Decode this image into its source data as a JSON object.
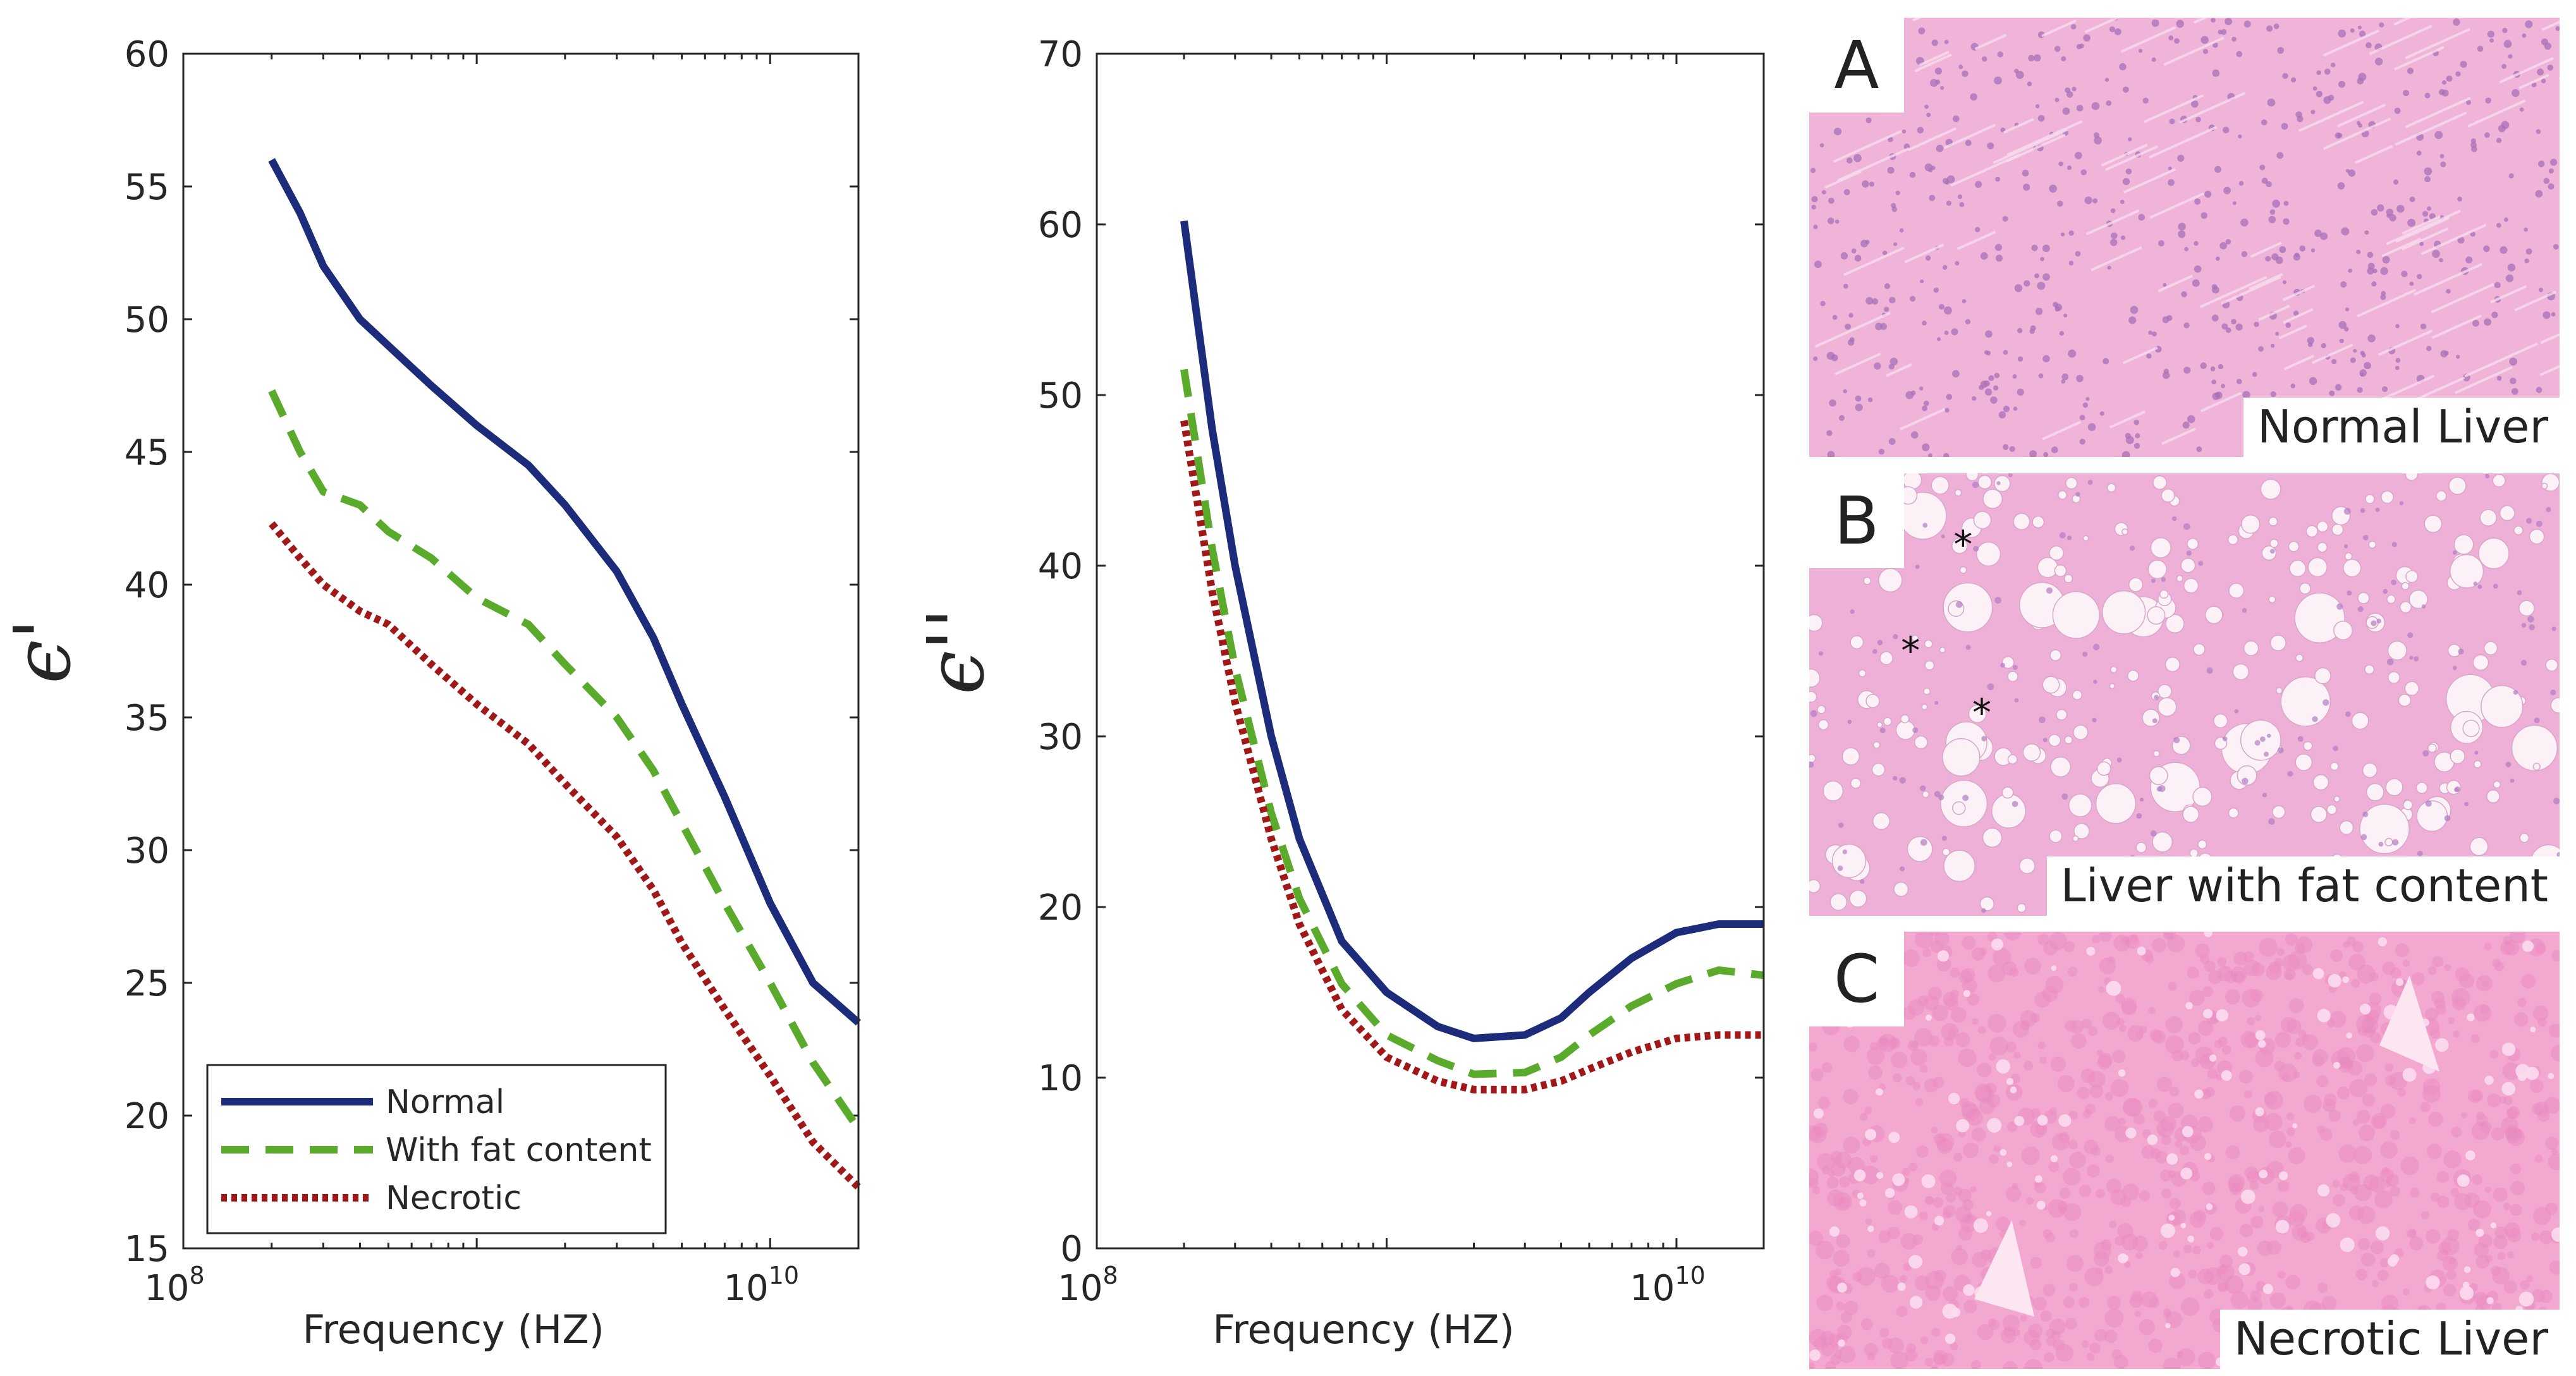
{
  "chart_data": [
    {
      "type": "line",
      "xscale": "log",
      "xlim": [
        100000000,
        20000000000
      ],
      "ylim": [
        15,
        60
      ],
      "xlabel": "Frequency (HZ)",
      "ylabel": "ϵ'",
      "x_tick_labels": [
        {
          "base": "10",
          "exp": "8"
        },
        {
          "base": "10",
          "exp": "10"
        }
      ],
      "y_ticks": [
        15,
        20,
        25,
        30,
        35,
        40,
        45,
        50,
        55,
        60
      ],
      "legend_position": "bottom-left",
      "x": [
        200000000,
        250000000,
        300000000,
        400000000,
        500000000,
        700000000,
        1000000000,
        1500000000,
        2000000000,
        3000000000,
        4000000000,
        5000000000,
        7000000000,
        10000000000,
        14000000000,
        20000000000
      ],
      "series": [
        {
          "name": "Normal",
          "color": "#1c2b7a",
          "style": "solid",
          "values": [
            56,
            54,
            52,
            50,
            49,
            47.5,
            46,
            44.5,
            43,
            40.5,
            38,
            35.5,
            32,
            28,
            25,
            23.5
          ]
        },
        {
          "name": "With fat content",
          "color": "#5aab2c",
          "style": "dashed",
          "values": [
            47.3,
            45,
            43.5,
            43,
            42,
            41,
            39.5,
            38.5,
            37,
            35,
            33,
            31,
            28,
            25,
            22,
            19.5
          ]
        },
        {
          "name": "Necrotic",
          "color": "#a01818",
          "style": "dotted",
          "values": [
            42.3,
            41,
            40,
            39,
            38.5,
            37,
            35.5,
            34,
            32.5,
            30.5,
            28.5,
            26.5,
            24,
            21.5,
            19,
            17.3
          ]
        }
      ]
    },
    {
      "type": "line",
      "xscale": "log",
      "xlim": [
        100000000,
        20000000000
      ],
      "ylim": [
        0,
        70
      ],
      "xlabel": "Frequency (HZ)",
      "ylabel": "ϵ''",
      "x_tick_labels": [
        {
          "base": "10",
          "exp": "8"
        },
        {
          "base": "10",
          "exp": "10"
        }
      ],
      "y_ticks": [
        0,
        10,
        20,
        30,
        40,
        50,
        60,
        70
      ],
      "x": [
        200000000,
        250000000,
        300000000,
        400000000,
        500000000,
        700000000,
        1000000000,
        1500000000,
        2000000000,
        3000000000,
        4000000000,
        5000000000,
        7000000000,
        10000000000,
        14000000000,
        20000000000
      ],
      "series": [
        {
          "name": "Normal",
          "color": "#1c2b7a",
          "style": "solid",
          "values": [
            60.2,
            48,
            40,
            30,
            24,
            18,
            15,
            13,
            12.3,
            12.5,
            13.5,
            15,
            17,
            18.5,
            19,
            19
          ]
        },
        {
          "name": "With fat content",
          "color": "#5aab2c",
          "style": "dashed",
          "values": [
            51.5,
            41,
            34,
            25.5,
            20.5,
            15.5,
            12.5,
            11,
            10.2,
            10.3,
            11.2,
            12.5,
            14.2,
            15.5,
            16.3,
            16
          ]
        },
        {
          "name": "Necrotic",
          "color": "#a01818",
          "style": "dotted",
          "values": [
            48.5,
            38.5,
            32,
            24,
            19,
            14,
            11.2,
            9.8,
            9.3,
            9.3,
            9.8,
            10.5,
            11.5,
            12.3,
            12.5,
            12.5
          ]
        }
      ]
    }
  ],
  "images": [
    {
      "letter": "A",
      "caption": "Normal Liver",
      "base": "#f0b4d8",
      "cell": "#a870b8",
      "vacuole": "#fbe4f2",
      "markers": []
    },
    {
      "letter": "B",
      "caption": "Liver with fat content",
      "base": "#eeb0d6",
      "cell": "#b07cc0",
      "vacuole": "#fdf1f8",
      "markers": [
        "*",
        "*",
        "*"
      ]
    },
    {
      "letter": "C",
      "caption": "Necrotic Liver",
      "base": "#f3a8d0",
      "cell": "#e88abf",
      "vacuole": "#fbdcee",
      "markers": []
    }
  ]
}
